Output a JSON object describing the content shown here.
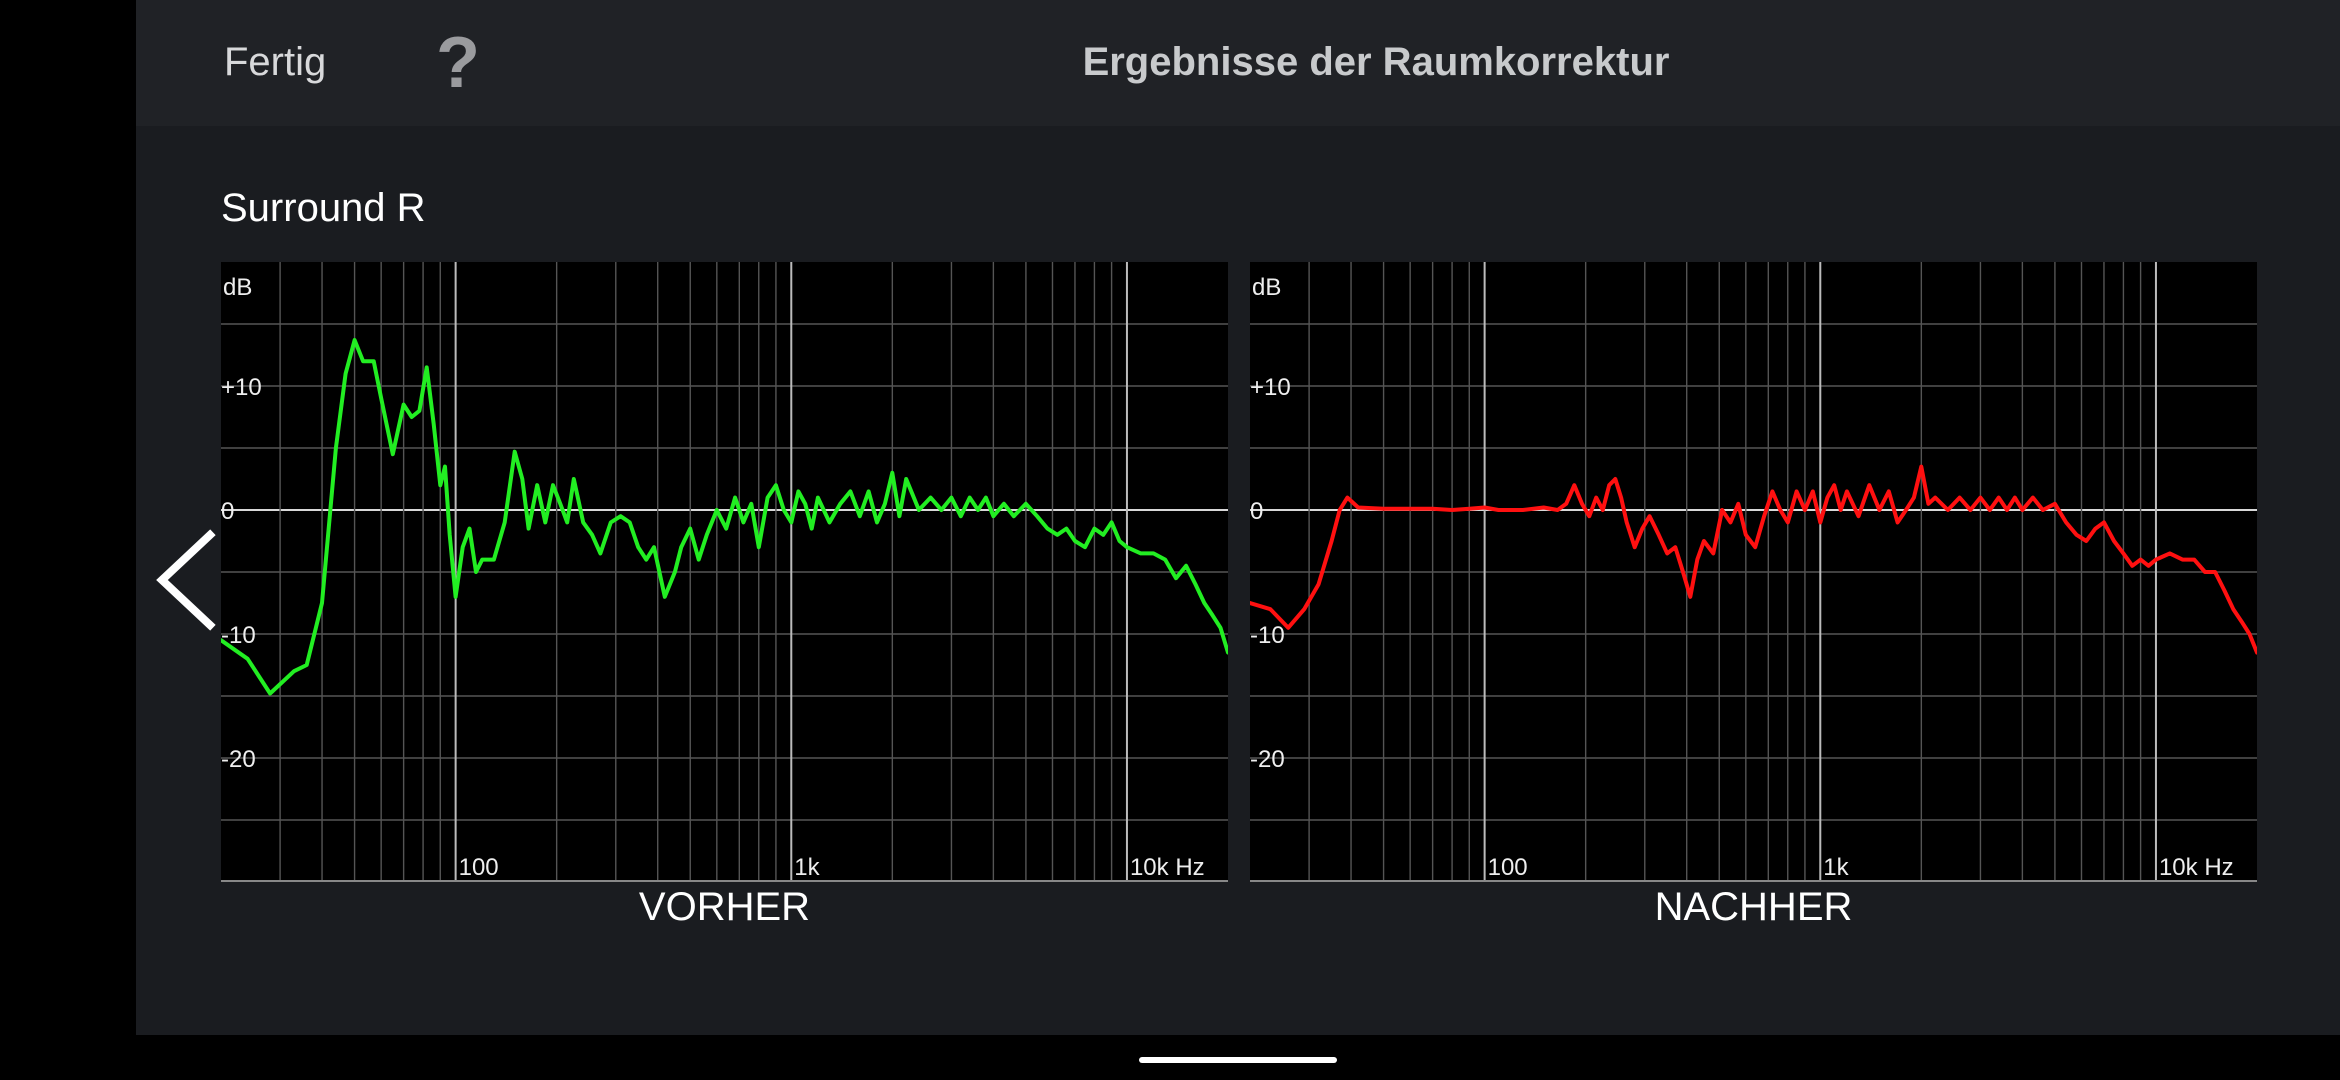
{
  "header": {
    "done_label": "Fertig",
    "help_symbol": "?",
    "title": "Ergebnisse der Raumkorrektur"
  },
  "channel_name": "Surround R",
  "icons": {
    "back": "chevron-left-icon",
    "help": "question-mark-icon"
  },
  "colors": {
    "before": "#22ee22",
    "after": "#ff1010",
    "background": "#1a1c20"
  },
  "chart_data": [
    {
      "type": "line",
      "title": "VORHER",
      "ylabel": "dB",
      "x_scale": "log",
      "xlim": [
        20,
        20000
      ],
      "ylim": [
        -30,
        20
      ],
      "y_ticks": [
        {
          "v": 10,
          "label": "+10"
        },
        {
          "v": 0,
          "label": "0"
        },
        {
          "v": -10,
          "label": "-10"
        },
        {
          "v": -20,
          "label": "-20"
        }
      ],
      "x_ticks": [
        {
          "v": 100,
          "label": "100"
        },
        {
          "v": 1000,
          "label": "1k"
        },
        {
          "v": 10000,
          "label": "10k Hz"
        }
      ],
      "grid": true,
      "series": [
        {
          "color": "#22ee22",
          "points": [
            [
              20,
              -10.5
            ],
            [
              24,
              -12
            ],
            [
              28,
              -14.8
            ],
            [
              33,
              -13
            ],
            [
              36,
              -12.5
            ],
            [
              40,
              -7.5
            ],
            [
              44,
              5
            ],
            [
              47,
              11
            ],
            [
              50,
              13.7
            ],
            [
              53,
              12
            ],
            [
              57,
              12
            ],
            [
              60,
              9
            ],
            [
              65,
              4.5
            ],
            [
              70,
              8.5
            ],
            [
              74,
              7.5
            ],
            [
              78,
              8
            ],
            [
              82,
              11.5
            ],
            [
              86,
              7
            ],
            [
              90,
              2
            ],
            [
              93,
              3.5
            ],
            [
              96,
              -2
            ],
            [
              100,
              -7
            ],
            [
              105,
              -3
            ],
            [
              110,
              -1.5
            ],
            [
              115,
              -5
            ],
            [
              120,
              -4
            ],
            [
              130,
              -4
            ],
            [
              140,
              -1
            ],
            [
              150,
              4.7
            ],
            [
              158,
              2.5
            ],
            [
              165,
              -1.5
            ],
            [
              175,
              2
            ],
            [
              185,
              -1
            ],
            [
              195,
              2
            ],
            [
              205,
              0.5
            ],
            [
              215,
              -1
            ],
            [
              225,
              2.5
            ],
            [
              240,
              -1
            ],
            [
              255,
              -2
            ],
            [
              270,
              -3.5
            ],
            [
              290,
              -1
            ],
            [
              310,
              -0.5
            ],
            [
              330,
              -1
            ],
            [
              350,
              -3
            ],
            [
              370,
              -4
            ],
            [
              390,
              -3
            ],
            [
              420,
              -7
            ],
            [
              450,
              -5
            ],
            [
              470,
              -3
            ],
            [
              500,
              -1.5
            ],
            [
              530,
              -4
            ],
            [
              560,
              -2
            ],
            [
              600,
              0
            ],
            [
              640,
              -1.5
            ],
            [
              680,
              1
            ],
            [
              720,
              -1
            ],
            [
              760,
              0.5
            ],
            [
              800,
              -3
            ],
            [
              850,
              1
            ],
            [
              900,
              2
            ],
            [
              950,
              0
            ],
            [
              1000,
              -1
            ],
            [
              1050,
              1.5
            ],
            [
              1100,
              0.5
            ],
            [
              1150,
              -1.5
            ],
            [
              1200,
              1
            ],
            [
              1300,
              -1
            ],
            [
              1400,
              0.5
            ],
            [
              1500,
              1.5
            ],
            [
              1600,
              -0.5
            ],
            [
              1700,
              1.5
            ],
            [
              1800,
              -1
            ],
            [
              1900,
              0.5
            ],
            [
              2000,
              3
            ],
            [
              2100,
              -0.5
            ],
            [
              2200,
              2.5
            ],
            [
              2400,
              0
            ],
            [
              2600,
              1
            ],
            [
              2800,
              0
            ],
            [
              3000,
              1
            ],
            [
              3200,
              -0.5
            ],
            [
              3400,
              1
            ],
            [
              3600,
              0
            ],
            [
              3800,
              1
            ],
            [
              4000,
              -0.5
            ],
            [
              4300,
              0.5
            ],
            [
              4600,
              -0.5
            ],
            [
              5000,
              0.5
            ],
            [
              5400,
              -0.5
            ],
            [
              5800,
              -1.5
            ],
            [
              6200,
              -2
            ],
            [
              6600,
              -1.5
            ],
            [
              7000,
              -2.5
            ],
            [
              7500,
              -3
            ],
            [
              8000,
              -1.5
            ],
            [
              8500,
              -2
            ],
            [
              9000,
              -1
            ],
            [
              9500,
              -2.5
            ],
            [
              10000,
              -3
            ],
            [
              11000,
              -3.5
            ],
            [
              12000,
              -3.5
            ],
            [
              13000,
              -4
            ],
            [
              14000,
              -5.5
            ],
            [
              15000,
              -4.5
            ],
            [
              16000,
              -6
            ],
            [
              17000,
              -7.5
            ],
            [
              18000,
              -8.5
            ],
            [
              19000,
              -9.5
            ],
            [
              20000,
              -11.5
            ]
          ]
        }
      ]
    },
    {
      "type": "line",
      "title": "NACHHER",
      "ylabel": "dB",
      "x_scale": "log",
      "xlim": [
        20,
        20000
      ],
      "ylim": [
        -30,
        20
      ],
      "y_ticks": [
        {
          "v": 10,
          "label": "+10"
        },
        {
          "v": 0,
          "label": "0"
        },
        {
          "v": -10,
          "label": "-10"
        },
        {
          "v": -20,
          "label": "-20"
        }
      ],
      "x_ticks": [
        {
          "v": 100,
          "label": "100"
        },
        {
          "v": 1000,
          "label": "1k"
        },
        {
          "v": 10000,
          "label": "10k Hz"
        }
      ],
      "grid": true,
      "series": [
        {
          "color": "#ff1010",
          "points": [
            [
              20,
              -7.5
            ],
            [
              23,
              -8
            ],
            [
              26,
              -9.5
            ],
            [
              29,
              -8
            ],
            [
              32,
              -6
            ],
            [
              35,
              -2.5
            ],
            [
              37,
              0
            ],
            [
              39,
              1
            ],
            [
              42,
              0.2
            ],
            [
              50,
              0.1
            ],
            [
              60,
              0.1
            ],
            [
              70,
              0.1
            ],
            [
              80,
              0
            ],
            [
              90,
              0.1
            ],
            [
              100,
              0.2
            ],
            [
              110,
              0
            ],
            [
              130,
              0
            ],
            [
              150,
              0.2
            ],
            [
              165,
              0
            ],
            [
              175,
              0.5
            ],
            [
              185,
              2
            ],
            [
              195,
              0.5
            ],
            [
              205,
              -0.5
            ],
            [
              215,
              1
            ],
            [
              225,
              0
            ],
            [
              235,
              2
            ],
            [
              245,
              2.5
            ],
            [
              255,
              1
            ],
            [
              265,
              -1
            ],
            [
              280,
              -3
            ],
            [
              295,
              -1.5
            ],
            [
              310,
              -0.5
            ],
            [
              330,
              -2
            ],
            [
              350,
              -3.5
            ],
            [
              370,
              -3
            ],
            [
              390,
              -5
            ],
            [
              410,
              -7
            ],
            [
              430,
              -4
            ],
            [
              450,
              -2.5
            ],
            [
              480,
              -3.5
            ],
            [
              510,
              0
            ],
            [
              540,
              -1
            ],
            [
              570,
              0.5
            ],
            [
              600,
              -2
            ],
            [
              640,
              -3
            ],
            [
              680,
              -0.5
            ],
            [
              720,
              1.5
            ],
            [
              760,
              0
            ],
            [
              800,
              -1
            ],
            [
              850,
              1.5
            ],
            [
              900,
              0
            ],
            [
              950,
              1.5
            ],
            [
              1000,
              -1
            ],
            [
              1050,
              1
            ],
            [
              1100,
              2
            ],
            [
              1150,
              0
            ],
            [
              1200,
              1.5
            ],
            [
              1300,
              -0.5
            ],
            [
              1400,
              2
            ],
            [
              1500,
              0
            ],
            [
              1600,
              1.5
            ],
            [
              1700,
              -1
            ],
            [
              1800,
              0
            ],
            [
              1900,
              1
            ],
            [
              2000,
              3.5
            ],
            [
              2100,
              0.5
            ],
            [
              2200,
              1
            ],
            [
              2400,
              0
            ],
            [
              2600,
              1
            ],
            [
              2800,
              0
            ],
            [
              3000,
              1
            ],
            [
              3200,
              0
            ],
            [
              3400,
              1
            ],
            [
              3600,
              0
            ],
            [
              3800,
              1
            ],
            [
              4000,
              0
            ],
            [
              4300,
              1
            ],
            [
              4600,
              0
            ],
            [
              5000,
              0.5
            ],
            [
              5400,
              -1
            ],
            [
              5800,
              -2
            ],
            [
              6200,
              -2.5
            ],
            [
              6600,
              -1.5
            ],
            [
              7000,
              -1
            ],
            [
              7500,
              -2.5
            ],
            [
              8000,
              -3.5
            ],
            [
              8500,
              -4.5
            ],
            [
              9000,
              -4
            ],
            [
              9500,
              -4.5
            ],
            [
              10000,
              -4
            ],
            [
              11000,
              -3.5
            ],
            [
              12000,
              -4
            ],
            [
              13000,
              -4
            ],
            [
              14000,
              -5
            ],
            [
              15000,
              -5
            ],
            [
              16000,
              -6.5
            ],
            [
              17000,
              -8
            ],
            [
              18000,
              -9
            ],
            [
              19000,
              -10
            ],
            [
              20000,
              -11.5
            ]
          ]
        }
      ]
    }
  ]
}
